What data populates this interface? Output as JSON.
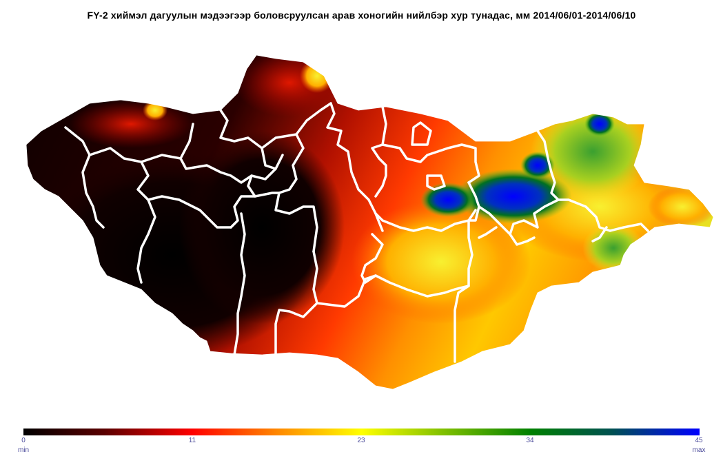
{
  "title": "FY-2  хиймэл дагуулын мэдээгээр боловсруулсан арав хоногийн нийлбэр хур тунадас, мм 2014/06/01-2014/06/10",
  "colorbar": {
    "ticks": [
      "0",
      "11",
      "23",
      "34",
      "45"
    ],
    "min_label": "min",
    "max_label": "max",
    "stops": [
      "#000000",
      "#5a0000",
      "#ff0000",
      "#ff8c00",
      "#ffff00",
      "#80c000",
      "#008000",
      "#005050",
      "#0000ff"
    ]
  },
  "colors": {
    "low": "#1a0000",
    "mid": "#d21a00",
    "high": "#ffe000",
    "very_high": "#1040e0",
    "borders": "#ffffff"
  }
}
